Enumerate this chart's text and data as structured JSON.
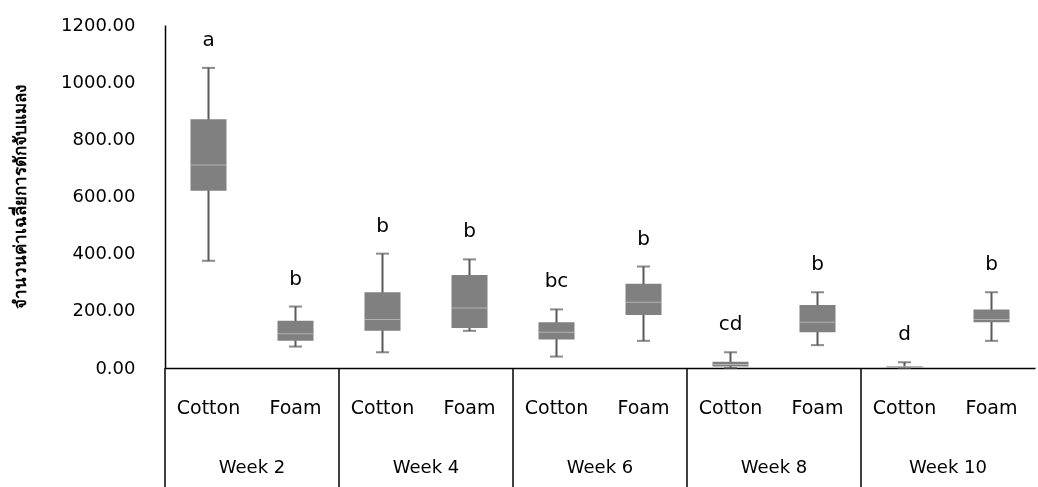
{
  "chart_data": {
    "type": "box",
    "ylabel": "จำนวนค่าเฉลี่ยการดักจับแมลง",
    "categories": [
      "Cotton",
      "Foam",
      "Cotton",
      "Foam",
      "Cotton",
      "Foam",
      "Cotton",
      "Foam",
      "Cotton",
      "Foam"
    ],
    "series": [
      {
        "color": "#808080",
        "boxes": [
          {
            "low": 375,
            "q1": 620,
            "median": 710,
            "q3": 870,
            "high": 1050
          },
          {
            "low": 75,
            "q1": 95,
            "median": 120,
            "q3": 165,
            "high": 215
          },
          {
            "low": 55,
            "q1": 130,
            "median": 170,
            "q3": 265,
            "high": 400
          },
          {
            "low": 130,
            "q1": 140,
            "median": 210,
            "q3": 325,
            "high": 380
          },
          {
            "low": 40,
            "q1": 100,
            "median": 125,
            "q3": 160,
            "high": 205
          },
          {
            "low": 95,
            "q1": 185,
            "median": 230,
            "q3": 295,
            "high": 355
          },
          {
            "low": 0,
            "q1": 5,
            "median": 12,
            "q3": 22,
            "high": 55
          },
          {
            "low": 80,
            "q1": 125,
            "median": 160,
            "q3": 220,
            "high": 265
          },
          {
            "low": 0,
            "q1": 2,
            "median": 4,
            "q3": 6,
            "high": 20
          },
          {
            "low": 95,
            "q1": 160,
            "median": 170,
            "q3": 205,
            "high": 265
          }
        ]
      }
    ],
    "ylim": [
      0,
      1200
    ],
    "yticks": [
      {
        "value": 0,
        "label": "0.00"
      },
      {
        "value": 200,
        "label": "200.00"
      },
      {
        "value": 400,
        "label": "400.00"
      },
      {
        "value": 600,
        "label": "600.00"
      },
      {
        "value": 800,
        "label": "800.00"
      },
      {
        "value": 1000,
        "label": "1000.00"
      },
      {
        "value": 1200,
        "label": "1200.00"
      }
    ],
    "annotations": [
      "a",
      "b",
      "b",
      "b",
      "bc",
      "b",
      "cd",
      "b",
      "d",
      "b",
      "Week 2",
      "Week 4",
      "Week 6",
      "Week 8",
      "Week 10"
    ],
    "grid": false
  }
}
